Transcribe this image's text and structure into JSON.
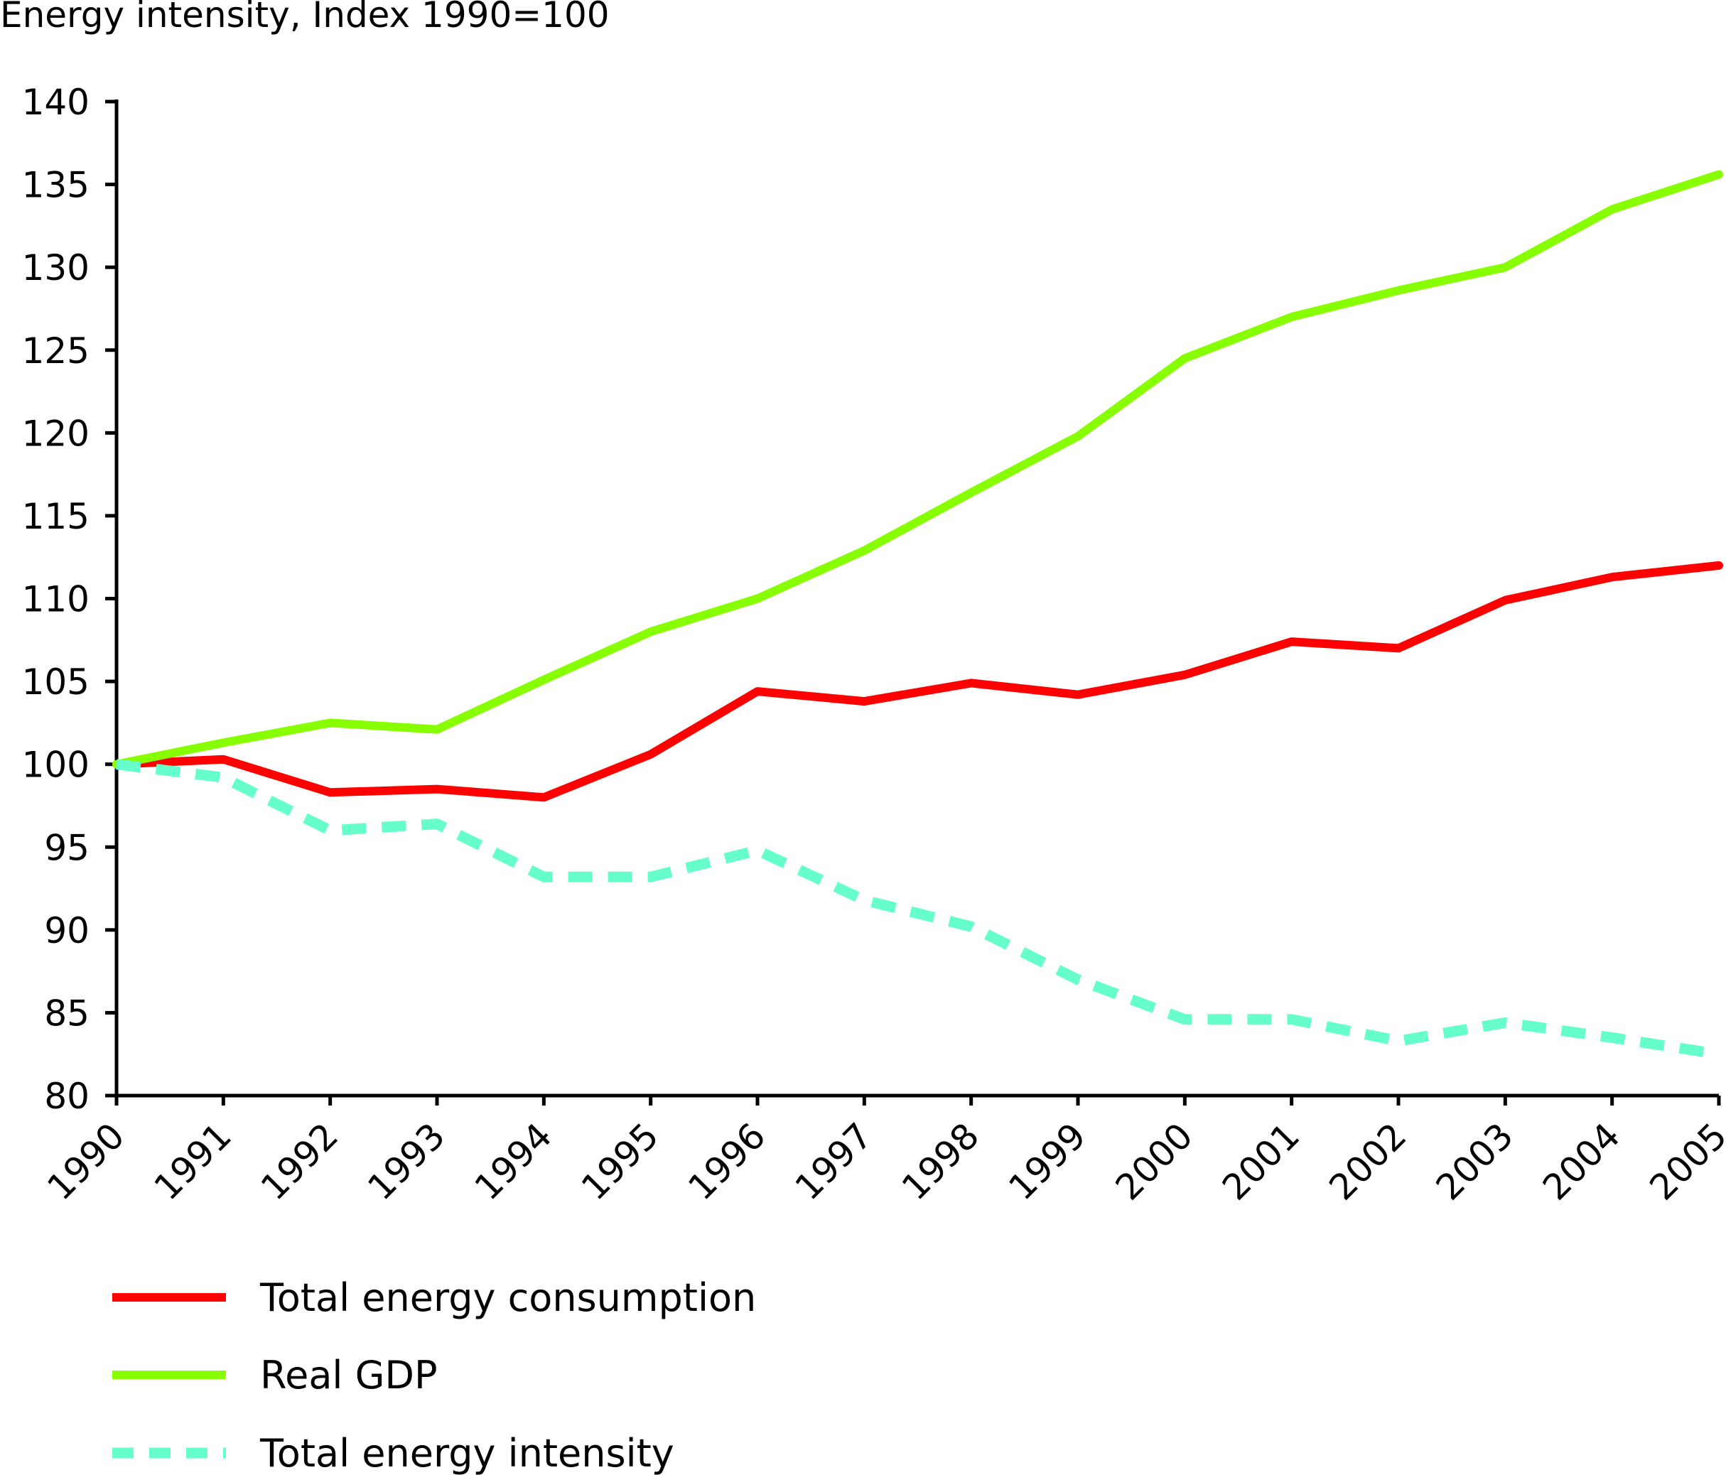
{
  "chart_data": {
    "type": "line",
    "title": "Energy intensity, Index 1990=100",
    "xlabel": "",
    "ylabel": "",
    "ylim": [
      80,
      140
    ],
    "yticks": [
      80,
      85,
      90,
      95,
      100,
      105,
      110,
      115,
      120,
      125,
      130,
      135,
      140
    ],
    "x": [
      "1990",
      "1991",
      "1992",
      "1993",
      "1994",
      "1995",
      "1996",
      "1997",
      "1998",
      "1999",
      "2000",
      "2001",
      "2002",
      "2003",
      "2004",
      "2005"
    ],
    "grid": false,
    "legend_position": "bottom-left",
    "series": [
      {
        "name": "Total energy consumption",
        "color": "#ff0000",
        "style": "solid",
        "values": [
          100,
          100.3,
          98.3,
          98.5,
          98,
          100.6,
          104.4,
          103.8,
          104.9,
          104.2,
          105.4,
          107.4,
          107,
          109.9,
          111.3,
          112
        ]
      },
      {
        "name": "Real GDP",
        "color": "#88ff00",
        "style": "solid",
        "values": [
          100,
          101.3,
          102.5,
          102.1,
          105.1,
          108,
          110,
          112.9,
          116.4,
          119.8,
          124.5,
          127,
          128.6,
          130,
          133.5,
          135.6
        ]
      },
      {
        "name": "Total energy intensity",
        "color": "#66ffcc",
        "style": "dashed",
        "values": [
          100,
          99.2,
          96,
          96.4,
          93.2,
          93.2,
          94.8,
          91.8,
          90.2,
          87,
          84.6,
          84.6,
          83.3,
          84.4,
          83.5,
          82.5
        ]
      }
    ]
  }
}
